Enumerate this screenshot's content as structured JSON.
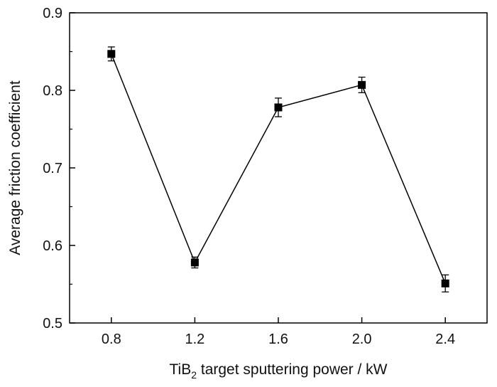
{
  "chart_data": {
    "type": "line",
    "xlabel_main": "TiB",
    "xlabel_sub": "2",
    "xlabel_rest": " target sputtering power / kW",
    "ylabel": "Average friction coefficient",
    "x": [
      0.8,
      1.2,
      1.6,
      2.0,
      2.4
    ],
    "x_tick_labels": [
      "0.8",
      "1.2",
      "1.6",
      "2.0",
      "2.4"
    ],
    "y_ticks": [
      0.5,
      0.6,
      0.7,
      0.8,
      0.9
    ],
    "y_tick_labels": [
      "0.5",
      "0.6",
      "0.7",
      "0.8",
      "0.9"
    ],
    "xlim": [
      0.6,
      2.6
    ],
    "ylim": [
      0.5,
      0.9
    ],
    "series": [
      {
        "values": [
          0.847,
          0.578,
          0.778,
          0.807,
          0.551
        ],
        "errors": [
          0.009,
          0.007,
          0.012,
          0.01,
          0.011
        ],
        "marker": "square",
        "color": "#000000"
      }
    ],
    "grid": false,
    "legend": "none"
  }
}
